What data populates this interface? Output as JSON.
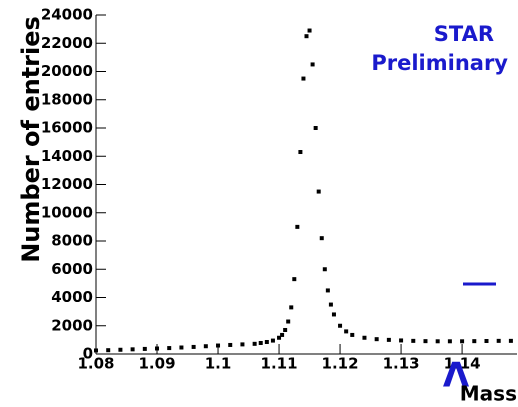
{
  "chart_data": {
    "type": "scatter",
    "y_label": "Number of entries",
    "x_label_symbol": "Λ",
    "x_label": "Mass",
    "annotations": [
      "STAR",
      "Preliminary"
    ],
    "color": "#000000",
    "annotation_color": "#1a1acc",
    "x": [
      1.08,
      1.082,
      1.084,
      1.086,
      1.088,
      1.09,
      1.092,
      1.094,
      1.096,
      1.098,
      1.1,
      1.102,
      1.104,
      1.106,
      1.107,
      1.108,
      1.109,
      1.11,
      1.1105,
      1.111,
      1.1115,
      1.112,
      1.1125,
      1.113,
      1.1135,
      1.114,
      1.1145,
      1.115,
      1.1155,
      1.116,
      1.1165,
      1.117,
      1.1175,
      1.118,
      1.1185,
      1.119,
      1.12,
      1.121,
      1.122,
      1.124,
      1.126,
      1.128,
      1.13,
      1.132,
      1.134,
      1.136,
      1.138,
      1.14,
      1.142,
      1.144,
      1.146,
      1.148
    ],
    "y": [
      250,
      270,
      300,
      330,
      360,
      390,
      420,
      460,
      500,
      550,
      600,
      640,
      680,
      720,
      780,
      850,
      950,
      1150,
      1350,
      1700,
      2300,
      3300,
      5300,
      9000,
      14300,
      19500,
      22500,
      22900,
      20500,
      16000,
      11500,
      8200,
      6000,
      4500,
      3500,
      2800,
      2000,
      1600,
      1350,
      1150,
      1050,
      1000,
      960,
      930,
      910,
      900,
      900,
      900,
      910,
      920,
      930,
      930
    ],
    "xlim": [
      1.08,
      1.149
    ],
    "ylim": [
      0,
      24000
    ],
    "xticks": [
      1.08,
      1.09,
      1.1,
      1.11,
      1.12,
      1.13,
      1.14
    ],
    "yticks": [
      0,
      2000,
      4000,
      6000,
      8000,
      10000,
      12000,
      14000,
      16000,
      18000,
      20000,
      22000,
      24000
    ]
  }
}
